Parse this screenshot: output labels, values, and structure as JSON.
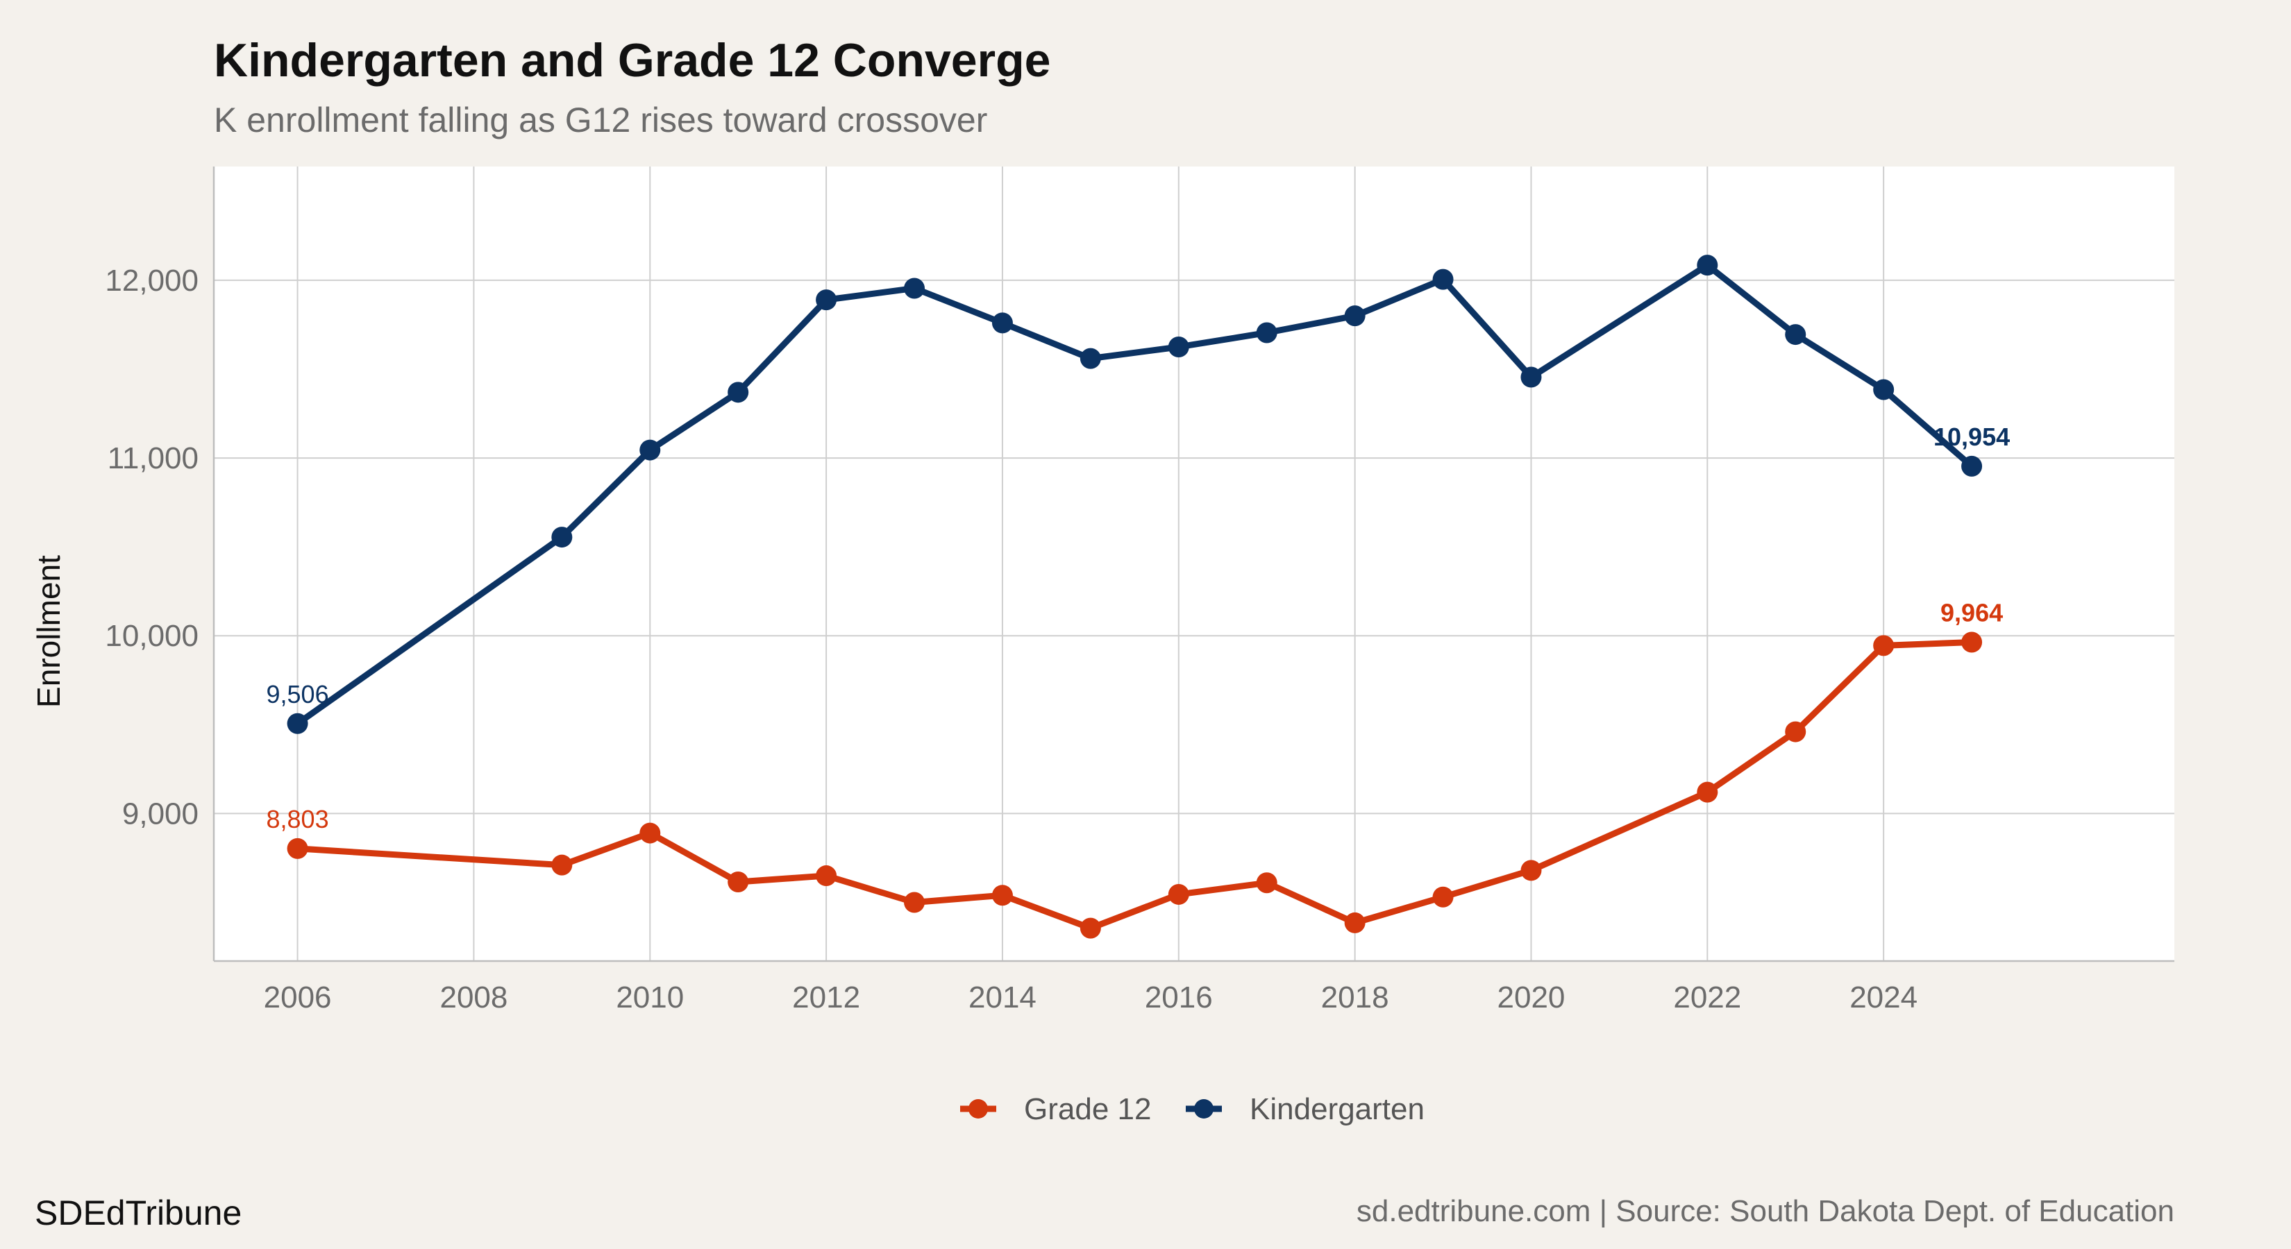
{
  "chart_data": {
    "type": "line",
    "title": "Kindergarten and Grade 12 Converge",
    "subtitle": "K enrollment falling as G12 rises toward crossover",
    "ylabel": "Enrollment",
    "xlabel": "",
    "xlim": [
      2005.05,
      2027.3
    ],
    "ylim": [
      8170,
      12640
    ],
    "x_ticks": [
      2006,
      2008,
      2010,
      2012,
      2014,
      2016,
      2018,
      2020,
      2022,
      2024
    ],
    "y_ticks": [
      9000,
      10000,
      11000,
      12000
    ],
    "grid": true,
    "legend_position": "bottom",
    "series": [
      {
        "name": "Grade 12",
        "color": "#d4380d",
        "x": [
          2006,
          2009,
          2010,
          2011,
          2012,
          2013,
          2014,
          2015,
          2016,
          2017,
          2018,
          2019,
          2020,
          2022,
          2023,
          2024,
          2025
        ],
        "values": [
          8803,
          8710,
          8890,
          8615,
          8650,
          8500,
          8540,
          8355,
          8545,
          8610,
          8385,
          8530,
          8680,
          9120,
          9460,
          9945,
          9964
        ]
      },
      {
        "name": "Kindergarten",
        "color": "#0c3363",
        "x": [
          2006,
          2009,
          2010,
          2011,
          2012,
          2013,
          2014,
          2015,
          2016,
          2017,
          2018,
          2019,
          2020,
          2022,
          2023,
          2024,
          2025
        ],
        "values": [
          9506,
          10555,
          11045,
          11370,
          11890,
          11955,
          11760,
          11560,
          11625,
          11705,
          11800,
          12005,
          11455,
          12085,
          11695,
          11385,
          10954
        ]
      }
    ],
    "annotations": [
      {
        "series": "Kindergarten",
        "x": 2006,
        "y": 9506,
        "text": "9,506",
        "bold": false
      },
      {
        "series": "Grade 12",
        "x": 2006,
        "y": 8803,
        "text": "8,803",
        "bold": false
      },
      {
        "series": "Kindergarten",
        "x": 2025,
        "y": 10954,
        "text": "10,954",
        "bold": true
      },
      {
        "series": "Grade 12",
        "x": 2025,
        "y": 9964,
        "text": "9,964",
        "bold": true
      }
    ]
  },
  "colors": {
    "background": "#f4f1ec",
    "panel": "#ffffff",
    "grid": "#cfcfcf",
    "axis": "#bdbdbd"
  },
  "footer": {
    "brand": "SDEdTribune",
    "credit": "sd.edtribune.com | Source: South Dakota Dept. of Education"
  }
}
